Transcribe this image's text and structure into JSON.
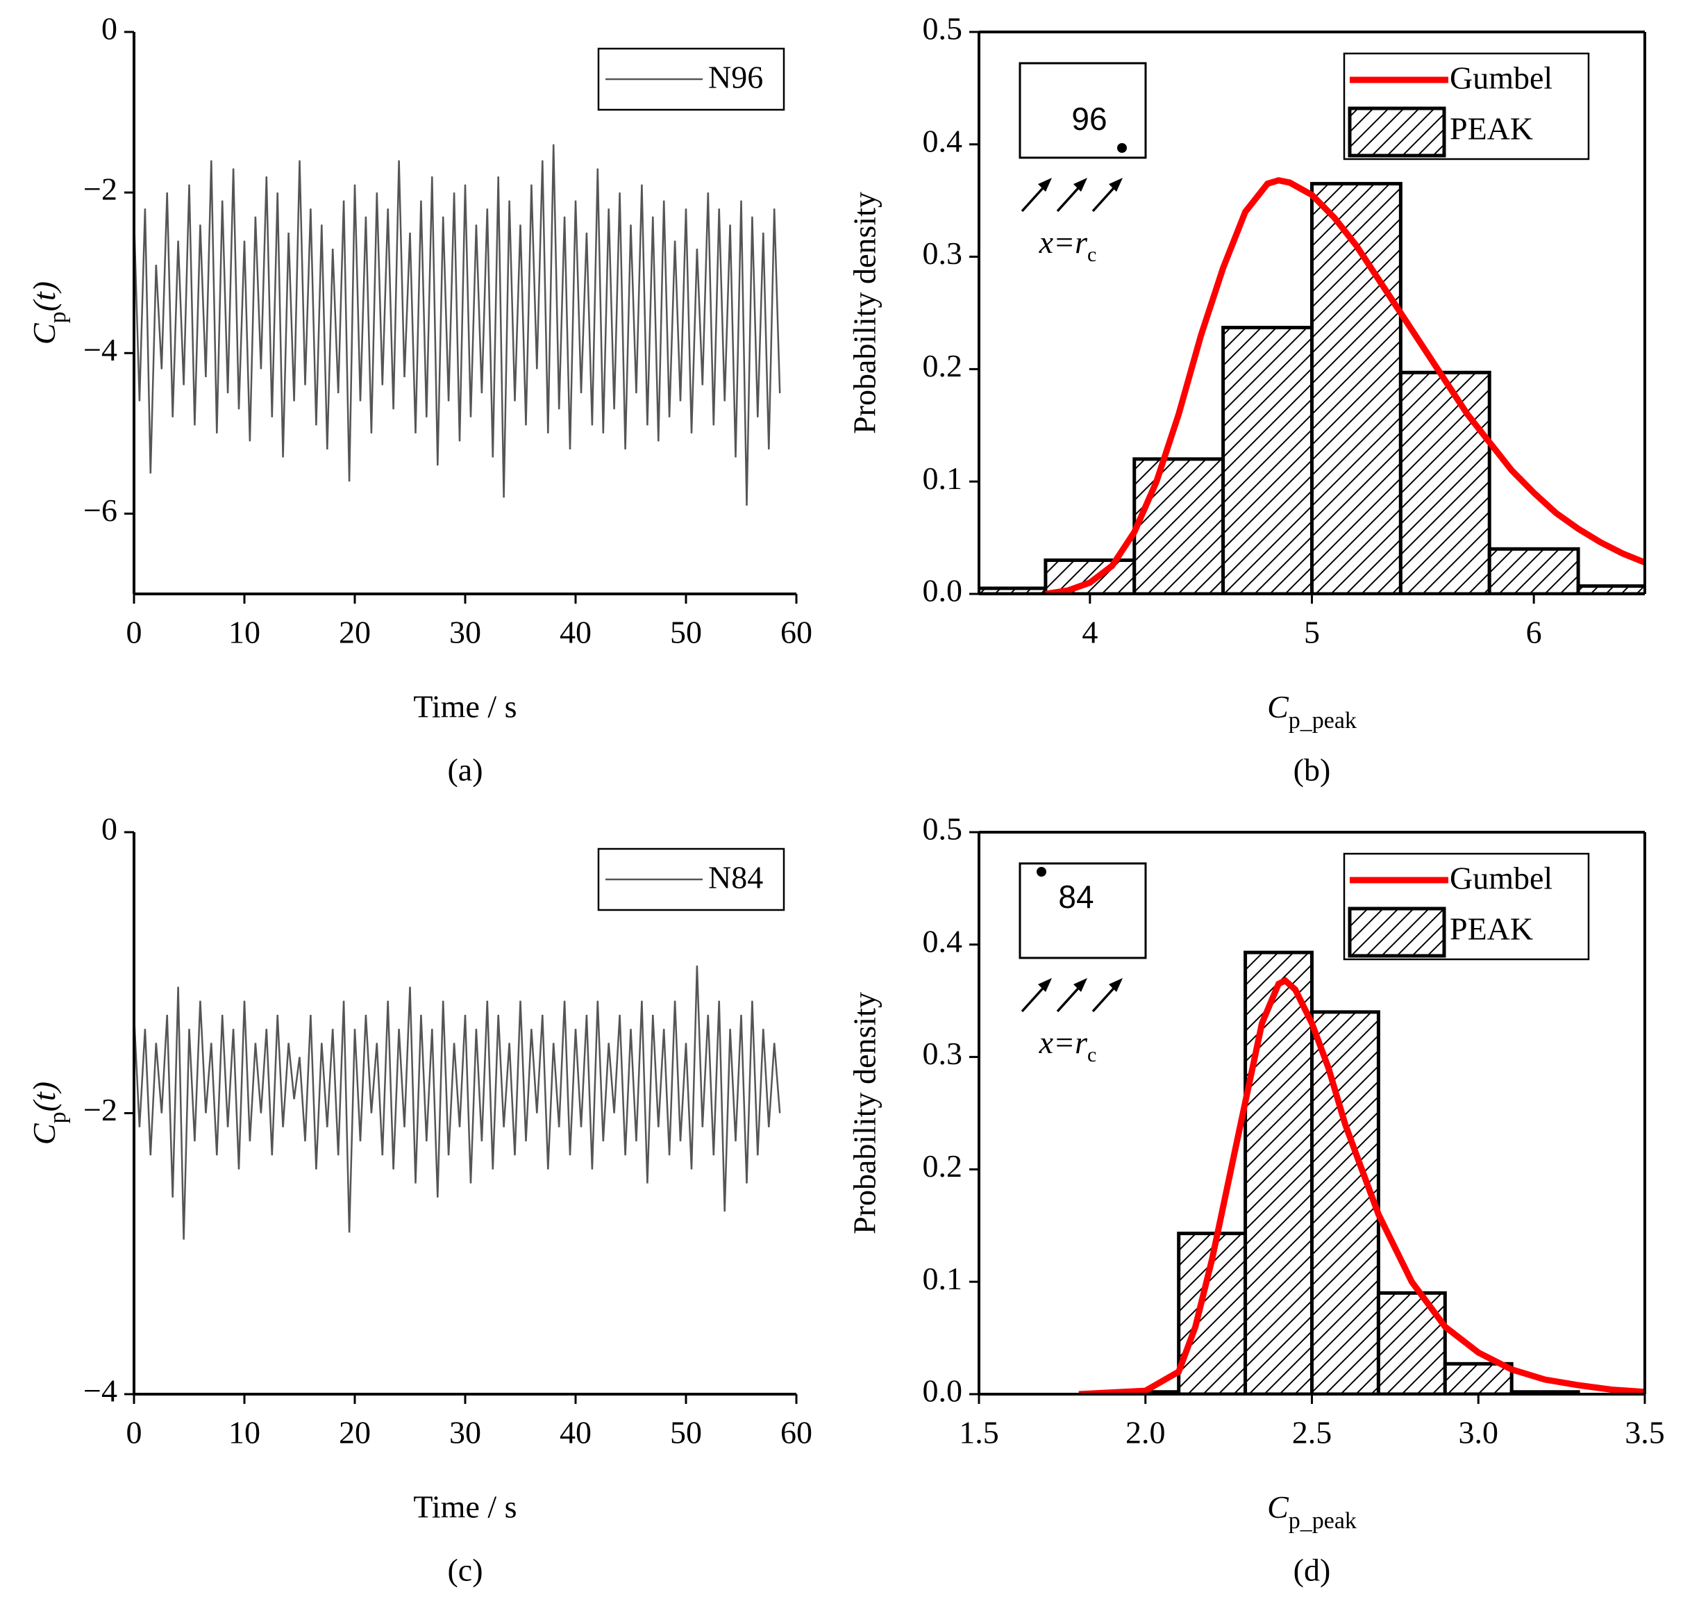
{
  "chart_data": [
    {
      "type": "line",
      "caption": "(a)",
      "xlabel": "Time / s",
      "ylabel": {
        "main": "C",
        "sub": "p",
        "rest": "(t)"
      },
      "xlim": [
        0,
        60
      ],
      "xticks": [
        0,
        10,
        20,
        30,
        40,
        50,
        60
      ],
      "ylim": [
        -7,
        0
      ],
      "yticks": [
        0,
        {
          "value": -2,
          "label": "−2"
        },
        {
          "value": -4,
          "label": "−4"
        },
        {
          "value": -6,
          "label": "−6"
        }
      ],
      "legend": "upper right",
      "x": [
        0,
        0.5,
        1,
        1.5,
        2,
        2.5,
        3,
        3.5,
        4,
        4.5,
        5,
        5.5,
        6,
        6.5,
        7,
        7.5,
        8,
        8.5,
        9,
        9.5,
        10,
        10.5,
        11,
        11.5,
        12,
        12.5,
        13,
        13.5,
        14,
        14.5,
        15,
        15.5,
        16,
        16.5,
        17,
        17.5,
        18,
        18.5,
        19,
        19.5,
        20,
        20.5,
        21,
        21.5,
        22,
        22.5,
        23,
        23.5,
        24,
        24.5,
        25,
        25.5,
        26,
        26.5,
        27,
        27.5,
        28,
        28.5,
        29,
        29.5,
        30,
        30.5,
        31,
        31.5,
        32,
        32.5,
        33,
        33.5,
        34,
        34.5,
        35,
        35.5,
        36,
        36.5,
        37,
        37.5,
        38,
        38.5,
        39,
        39.5,
        40,
        40.5,
        41,
        41.5,
        42,
        42.5,
        43,
        43.5,
        44,
        44.5,
        45,
        45.5,
        46,
        46.5,
        47,
        47.5,
        48,
        48.5,
        49,
        49.5,
        50,
        50.5,
        51,
        51.5,
        52,
        52.5,
        53,
        53.5,
        54,
        54.5,
        55,
        55.5,
        56,
        56.5,
        57,
        57.5,
        58,
        58.5
      ],
      "series": [
        {
          "name": "N96",
          "color": "#555555",
          "values": [
            -2.3,
            -4.6,
            -2.2,
            -5.5,
            -2.9,
            -4.2,
            -2.0,
            -4.8,
            -2.6,
            -4.4,
            -1.9,
            -4.9,
            -2.4,
            -4.3,
            -1.6,
            -5.0,
            -2.1,
            -4.5,
            -1.7,
            -4.7,
            -2.6,
            -5.1,
            -2.3,
            -4.2,
            -1.8,
            -4.8,
            -2.0,
            -5.3,
            -2.5,
            -4.6,
            -1.6,
            -4.4,
            -2.2,
            -4.9,
            -2.4,
            -5.2,
            -2.7,
            -4.5,
            -2.1,
            -5.6,
            -1.9,
            -4.6,
            -2.3,
            -5.0,
            -2.0,
            -4.4,
            -2.2,
            -4.7,
            -1.6,
            -4.3,
            -2.5,
            -5.0,
            -2.1,
            -4.8,
            -1.8,
            -5.4,
            -2.3,
            -4.6,
            -2.0,
            -5.1,
            -1.9,
            -4.8,
            -2.4,
            -4.5,
            -2.2,
            -5.3,
            -1.8,
            -5.8,
            -2.1,
            -4.6,
            -2.4,
            -4.9,
            -1.9,
            -4.2,
            -1.6,
            -5.0,
            -1.4,
            -4.7,
            -2.3,
            -5.2,
            -2.1,
            -4.5,
            -2.5,
            -4.9,
            -1.7,
            -5.0,
            -2.2,
            -4.7,
            -2.0,
            -5.2,
            -2.4,
            -4.5,
            -1.9,
            -4.9,
            -2.3,
            -5.1,
            -2.1,
            -4.8,
            -2.6,
            -4.6,
            -2.2,
            -5.0,
            -2.7,
            -4.4,
            -2.0,
            -4.9,
            -2.2,
            -4.6,
            -2.4,
            -5.3,
            -2.1,
            -5.9,
            -2.3,
            -4.8,
            -2.5,
            -5.2,
            -2.2,
            -4.5
          ]
        }
      ]
    },
    {
      "type": "histogram",
      "caption": "(b)",
      "xlabel": {
        "main": "C",
        "sub": "p_peak"
      },
      "ylabel": "Probability density",
      "xlim": [
        3.5,
        6.5
      ],
      "xticks": [
        4,
        5,
        6
      ],
      "ylim": [
        0,
        0.5
      ],
      "yticks": [
        {
          "value": 0,
          "label": "0.0"
        },
        0.1,
        0.2,
        0.3,
        0.4,
        0.5
      ],
      "legend": "upper right",
      "inset": {
        "label": "96",
        "note": "x=r",
        "note_sub": "c"
      },
      "series": [
        {
          "name": "Gumbel",
          "color": "#ff0000",
          "x": [
            3.8,
            3.9,
            4.0,
            4.1,
            4.2,
            4.3,
            4.4,
            4.5,
            4.6,
            4.7,
            4.8,
            4.85,
            4.9,
            5.0,
            5.1,
            5.2,
            5.3,
            5.4,
            5.5,
            5.6,
            5.7,
            5.8,
            5.9,
            6.0,
            6.1,
            6.2,
            6.3,
            6.4,
            6.5
          ],
          "values": [
            0,
            0.003,
            0.01,
            0.025,
            0.055,
            0.1,
            0.16,
            0.23,
            0.29,
            0.34,
            0.365,
            0.368,
            0.366,
            0.355,
            0.335,
            0.31,
            0.28,
            0.25,
            0.22,
            0.19,
            0.16,
            0.135,
            0.11,
            0.09,
            0.072,
            0.058,
            0.046,
            0.036,
            0.028
          ]
        },
        {
          "name": "PEAK",
          "color": "#000000",
          "bins": [
            3.4,
            3.8,
            4.2,
            4.6,
            5.0,
            5.4,
            5.8,
            6.2,
            6.6
          ],
          "values": [
            0.005,
            0.03,
            0.12,
            0.237,
            0.365,
            0.197,
            0.04,
            0.007
          ]
        }
      ]
    },
    {
      "type": "line",
      "caption": "(c)",
      "xlabel": "Time / s",
      "ylabel": {
        "main": "C",
        "sub": "p",
        "rest": "(t)"
      },
      "xlim": [
        0,
        60
      ],
      "xticks": [
        0,
        10,
        20,
        30,
        40,
        50,
        60
      ],
      "ylim": [
        -4,
        0
      ],
      "yticks": [
        0,
        {
          "value": -2,
          "label": "−2"
        },
        {
          "value": -4,
          "label": "−4"
        }
      ],
      "legend": "upper right",
      "x": [
        0,
        0.5,
        1,
        1.5,
        2,
        2.5,
        3,
        3.5,
        4,
        4.5,
        5,
        5.5,
        6,
        6.5,
        7,
        7.5,
        8,
        8.5,
        9,
        9.5,
        10,
        10.5,
        11,
        11.5,
        12,
        12.5,
        13,
        13.5,
        14,
        14.5,
        15,
        15.5,
        16,
        16.5,
        17,
        17.5,
        18,
        18.5,
        19,
        19.5,
        20,
        20.5,
        21,
        21.5,
        22,
        22.5,
        23,
        23.5,
        24,
        24.5,
        25,
        25.5,
        26,
        26.5,
        27,
        27.5,
        28,
        28.5,
        29,
        29.5,
        30,
        30.5,
        31,
        31.5,
        32,
        32.5,
        33,
        33.5,
        34,
        34.5,
        35,
        35.5,
        36,
        36.5,
        37,
        37.5,
        38,
        38.5,
        39,
        39.5,
        40,
        40.5,
        41,
        41.5,
        42,
        42.5,
        43,
        43.5,
        44,
        44.5,
        45,
        45.5,
        46,
        46.5,
        47,
        47.5,
        48,
        48.5,
        49,
        49.5,
        50,
        50.5,
        51,
        51.5,
        52,
        52.5,
        53,
        53.5,
        54,
        54.5,
        55,
        55.5,
        56,
        56.5,
        57,
        57.5,
        58,
        58.5
      ],
      "series": [
        {
          "name": "N84",
          "color": "#555555",
          "values": [
            -1.3,
            -2.1,
            -1.4,
            -2.3,
            -1.5,
            -2.0,
            -1.3,
            -2.6,
            -1.1,
            -2.9,
            -1.4,
            -2.2,
            -1.2,
            -2.0,
            -1.5,
            -2.3,
            -1.3,
            -2.1,
            -1.4,
            -2.4,
            -1.2,
            -2.2,
            -1.5,
            -2.0,
            -1.4,
            -2.3,
            -1.3,
            -2.1,
            -1.5,
            -1.9,
            -1.6,
            -2.2,
            -1.3,
            -2.4,
            -1.5,
            -2.1,
            -1.4,
            -2.3,
            -1.2,
            -2.85,
            -1.4,
            -2.2,
            -1.3,
            -2.0,
            -1.5,
            -2.3,
            -1.2,
            -2.4,
            -1.4,
            -2.1,
            -1.1,
            -2.5,
            -1.3,
            -2.2,
            -1.4,
            -2.6,
            -1.2,
            -2.3,
            -1.5,
            -2.1,
            -1.3,
            -2.5,
            -1.4,
            -2.2,
            -1.2,
            -2.4,
            -1.3,
            -2.1,
            -1.5,
            -2.3,
            -1.2,
            -2.2,
            -1.4,
            -2.0,
            -1.3,
            -2.4,
            -1.5,
            -2.1,
            -1.2,
            -2.3,
            -1.4,
            -2.1,
            -1.3,
            -2.4,
            -1.2,
            -2.2,
            -1.5,
            -2.0,
            -1.3,
            -2.3,
            -1.4,
            -2.2,
            -1.2,
            -2.5,
            -1.3,
            -2.1,
            -1.4,
            -2.3,
            -1.2,
            -2.2,
            -1.5,
            -2.4,
            -0.95,
            -2.1,
            -1.3,
            -2.3,
            -1.2,
            -2.7,
            -1.4,
            -2.2,
            -1.3,
            -2.5,
            -1.2,
            -2.3,
            -1.4,
            -2.1,
            -1.5,
            -2.0
          ]
        }
      ]
    },
    {
      "type": "histogram",
      "caption": "(d)",
      "xlabel": {
        "main": "C",
        "sub": "p_peak"
      },
      "ylabel": "Probability density",
      "xlim": [
        1.5,
        3.5
      ],
      "xticks": [
        1.5,
        {
          "value": 2,
          "label": "2.0"
        },
        2.5,
        {
          "value": 3,
          "label": "3.0"
        },
        3.5
      ],
      "ylim": [
        0,
        0.5
      ],
      "yticks": [
        {
          "value": 0,
          "label": "0.0"
        },
        0.1,
        0.2,
        0.3,
        0.4,
        0.5
      ],
      "legend": "upper right",
      "inset": {
        "label": "84",
        "note": "x=r",
        "note_sub": "c"
      },
      "series": [
        {
          "name": "Gumbel",
          "color": "#ff0000",
          "x": [
            1.8,
            2.0,
            2.1,
            2.15,
            2.2,
            2.25,
            2.3,
            2.35,
            2.4,
            2.42,
            2.45,
            2.5,
            2.55,
            2.6,
            2.65,
            2.7,
            2.8,
            2.9,
            3.0,
            3.1,
            3.2,
            3.3,
            3.4,
            3.5
          ],
          "values": [
            0,
            0.003,
            0.02,
            0.06,
            0.12,
            0.19,
            0.26,
            0.33,
            0.365,
            0.368,
            0.36,
            0.33,
            0.29,
            0.24,
            0.2,
            0.16,
            0.1,
            0.06,
            0.037,
            0.022,
            0.013,
            0.008,
            0.004,
            0.002
          ]
        },
        {
          "name": "PEAK",
          "color": "#000000",
          "bins": [
            1.9,
            2.1,
            2.3,
            2.5,
            2.7,
            2.9,
            3.1,
            3.3
          ],
          "values": [
            0.002,
            0.143,
            0.393,
            0.34,
            0.09,
            0.027,
            0.002
          ]
        }
      ]
    }
  ]
}
